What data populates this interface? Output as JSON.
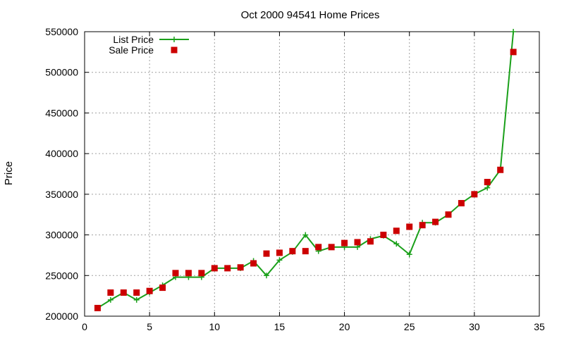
{
  "chart_data": {
    "type": "line",
    "title": "Oct 2000 94541 Home Prices",
    "xlabel": "",
    "ylabel": "Price",
    "xlim": [
      0,
      35
    ],
    "ylim": [
      200000,
      550000
    ],
    "x_ticks": [
      0,
      5,
      10,
      15,
      20,
      25,
      30,
      35
    ],
    "y_ticks": [
      200000,
      250000,
      300000,
      350000,
      400000,
      450000,
      500000,
      550000
    ],
    "grid": true,
    "legend_position": "top-left",
    "series": [
      {
        "name": "List Price",
        "style": "line-plus",
        "color": "#1aa01a",
        "x": [
          1,
          2,
          3,
          4,
          5,
          6,
          7,
          8,
          9,
          10,
          11,
          12,
          13,
          14,
          15,
          16,
          17,
          18,
          19,
          20,
          21,
          22,
          23,
          24,
          25,
          26,
          27,
          28,
          29,
          30,
          31,
          32,
          33
        ],
        "values": [
          210000,
          220000,
          229000,
          220000,
          229000,
          238000,
          248000,
          248000,
          248000,
          259000,
          259000,
          259000,
          268000,
          250000,
          269000,
          279000,
          300000,
          280000,
          285000,
          285000,
          285000,
          295000,
          299000,
          289000,
          276000,
          315000,
          315000,
          325000,
          339000,
          350000,
          358000,
          380000,
          550000
        ]
      },
      {
        "name": "Sale Price",
        "style": "square",
        "color": "#cc0000",
        "x": [
          1,
          2,
          3,
          4,
          5,
          6,
          7,
          8,
          9,
          10,
          11,
          12,
          13,
          14,
          15,
          16,
          17,
          18,
          19,
          20,
          21,
          22,
          23,
          24,
          25,
          26,
          27,
          28,
          29,
          30,
          31,
          32,
          33
        ],
        "values": [
          210000,
          229000,
          229000,
          229000,
          231000,
          235000,
          253000,
          253000,
          253000,
          259000,
          259000,
          260000,
          265000,
          277000,
          278000,
          280000,
          280000,
          285000,
          285000,
          290000,
          291000,
          292000,
          300000,
          305000,
          310000,
          312000,
          316000,
          325000,
          339000,
          350000,
          365000,
          380000,
          525000
        ]
      }
    ]
  }
}
